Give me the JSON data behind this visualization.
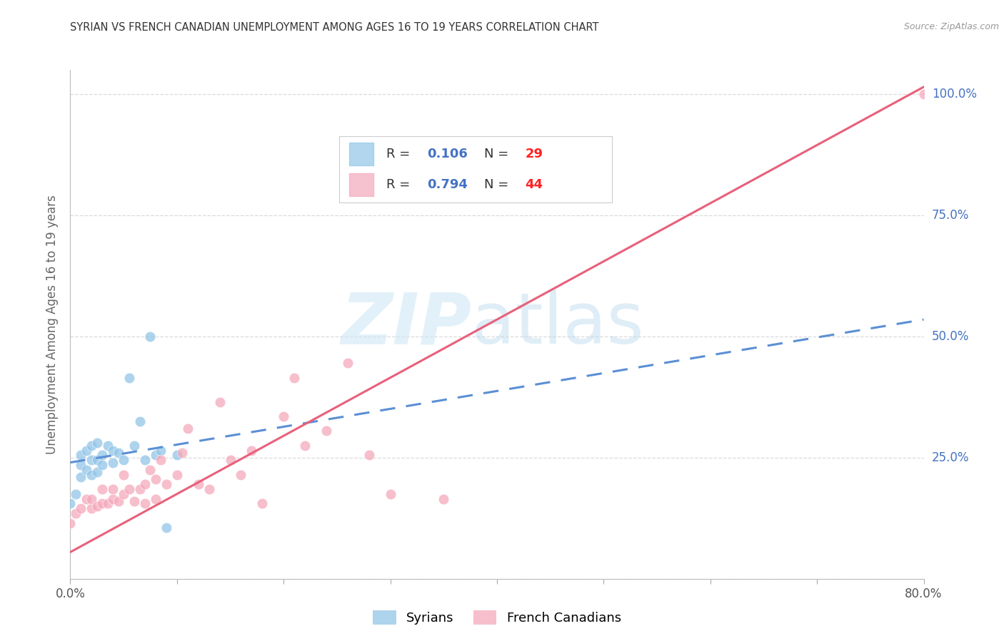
{
  "title": "SYRIAN VS FRENCH CANADIAN UNEMPLOYMENT AMONG AGES 16 TO 19 YEARS CORRELATION CHART",
  "source": "Source: ZipAtlas.com",
  "ylabel": "Unemployment Among Ages 16 to 19 years",
  "watermark_zip": "ZIP",
  "watermark_atlas": "atlas",
  "xlim": [
    0.0,
    0.8
  ],
  "ylim": [
    0.0,
    1.05
  ],
  "xticks": [
    0.0,
    0.1,
    0.2,
    0.3,
    0.4,
    0.5,
    0.6,
    0.7,
    0.8
  ],
  "yticks": [
    0.0,
    0.25,
    0.5,
    0.75,
    1.0
  ],
  "yticklabels": [
    "",
    "25.0%",
    "50.0%",
    "75.0%",
    "100.0%"
  ],
  "syrians_R": "0.106",
  "syrians_N": "29",
  "french_R": "0.794",
  "french_N": "44",
  "syrians_color": "#92c5e8",
  "french_color": "#f5a8bb",
  "trend_syrian_color": "#5b8fd4",
  "trend_french_color": "#e8607a",
  "background_color": "#ffffff",
  "grid_color": "#d0d0d0",
  "syrians_x": [
    0.0,
    0.005,
    0.01,
    0.01,
    0.01,
    0.015,
    0.015,
    0.02,
    0.02,
    0.02,
    0.025,
    0.025,
    0.025,
    0.03,
    0.03,
    0.035,
    0.04,
    0.04,
    0.045,
    0.05,
    0.055,
    0.06,
    0.065,
    0.07,
    0.075,
    0.08,
    0.085,
    0.09,
    0.1
  ],
  "syrians_y": [
    0.155,
    0.175,
    0.21,
    0.235,
    0.255,
    0.225,
    0.265,
    0.215,
    0.245,
    0.275,
    0.22,
    0.245,
    0.28,
    0.235,
    0.255,
    0.275,
    0.24,
    0.265,
    0.26,
    0.245,
    0.415,
    0.275,
    0.325,
    0.245,
    0.5,
    0.255,
    0.265,
    0.105,
    0.255
  ],
  "french_x": [
    0.0,
    0.005,
    0.01,
    0.015,
    0.02,
    0.02,
    0.025,
    0.03,
    0.03,
    0.035,
    0.04,
    0.04,
    0.045,
    0.05,
    0.05,
    0.055,
    0.06,
    0.065,
    0.07,
    0.07,
    0.075,
    0.08,
    0.08,
    0.085,
    0.09,
    0.1,
    0.105,
    0.11,
    0.12,
    0.13,
    0.14,
    0.15,
    0.16,
    0.17,
    0.18,
    0.2,
    0.21,
    0.22,
    0.24,
    0.26,
    0.28,
    0.3,
    0.35,
    0.8
  ],
  "french_y": [
    0.115,
    0.135,
    0.145,
    0.165,
    0.145,
    0.165,
    0.15,
    0.155,
    0.185,
    0.155,
    0.165,
    0.185,
    0.16,
    0.175,
    0.215,
    0.185,
    0.16,
    0.185,
    0.155,
    0.195,
    0.225,
    0.165,
    0.205,
    0.245,
    0.195,
    0.215,
    0.26,
    0.31,
    0.195,
    0.185,
    0.365,
    0.245,
    0.215,
    0.265,
    0.155,
    0.335,
    0.415,
    0.275,
    0.305,
    0.445,
    0.255,
    0.175,
    0.165,
    1.0
  ],
  "trend_syrian_x0": 0.0,
  "trend_syrian_y0": 0.24,
  "trend_syrian_x1": 0.8,
  "trend_syrian_y1": 0.535,
  "trend_french_x0": 0.0,
  "trend_french_y0": 0.055,
  "trend_french_x1": 0.8,
  "trend_french_y1": 1.015
}
